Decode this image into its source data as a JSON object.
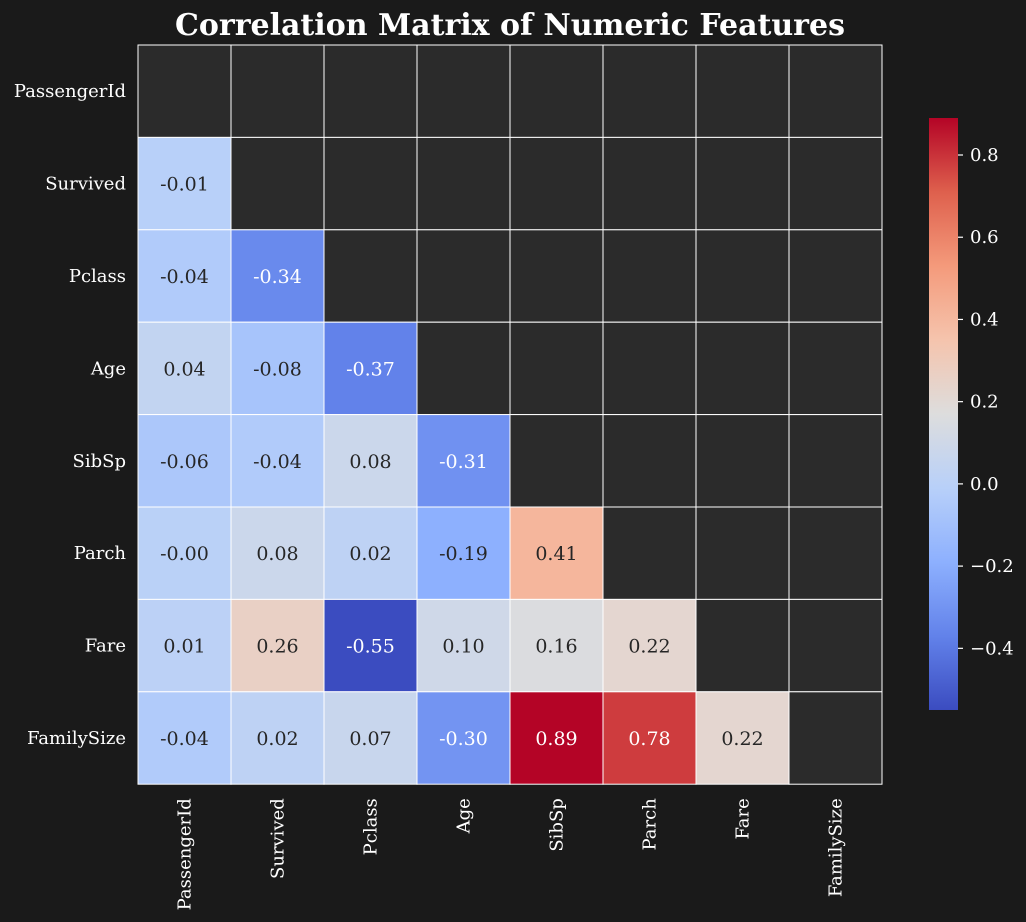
{
  "chart_data": {
    "type": "heatmap",
    "title": "Correlation Matrix of Numeric Features",
    "variables": [
      "PassengerId",
      "Survived",
      "Pclass",
      "Age",
      "SibSp",
      "Parch",
      "Fare",
      "FamilySize"
    ],
    "mask": "upper-triangle-including-diagonal",
    "cells": [
      {
        "row": 1,
        "col": 0,
        "value": -0.01,
        "label": "-0.01"
      },
      {
        "row": 2,
        "col": 0,
        "value": -0.04,
        "label": "-0.04"
      },
      {
        "row": 2,
        "col": 1,
        "value": -0.34,
        "label": "-0.34"
      },
      {
        "row": 3,
        "col": 0,
        "value": 0.04,
        "label": "0.04"
      },
      {
        "row": 3,
        "col": 1,
        "value": -0.08,
        "label": "-0.08"
      },
      {
        "row": 3,
        "col": 2,
        "value": -0.37,
        "label": "-0.37"
      },
      {
        "row": 4,
        "col": 0,
        "value": -0.06,
        "label": "-0.06"
      },
      {
        "row": 4,
        "col": 1,
        "value": -0.04,
        "label": "-0.04"
      },
      {
        "row": 4,
        "col": 2,
        "value": 0.08,
        "label": "0.08"
      },
      {
        "row": 4,
        "col": 3,
        "value": -0.31,
        "label": "-0.31"
      },
      {
        "row": 5,
        "col": 0,
        "value": -0.0,
        "label": "-0.00"
      },
      {
        "row": 5,
        "col": 1,
        "value": 0.08,
        "label": "0.08"
      },
      {
        "row": 5,
        "col": 2,
        "value": 0.02,
        "label": "0.02"
      },
      {
        "row": 5,
        "col": 3,
        "value": -0.19,
        "label": "-0.19"
      },
      {
        "row": 5,
        "col": 4,
        "value": 0.41,
        "label": "0.41"
      },
      {
        "row": 6,
        "col": 0,
        "value": 0.01,
        "label": "0.01"
      },
      {
        "row": 6,
        "col": 1,
        "value": 0.26,
        "label": "0.26"
      },
      {
        "row": 6,
        "col": 2,
        "value": -0.55,
        "label": "-0.55"
      },
      {
        "row": 6,
        "col": 3,
        "value": 0.1,
        "label": "0.10"
      },
      {
        "row": 6,
        "col": 4,
        "value": 0.16,
        "label": "0.16"
      },
      {
        "row": 6,
        "col": 5,
        "value": 0.22,
        "label": "0.22"
      },
      {
        "row": 7,
        "col": 0,
        "value": -0.04,
        "label": "-0.04"
      },
      {
        "row": 7,
        "col": 1,
        "value": 0.02,
        "label": "0.02"
      },
      {
        "row": 7,
        "col": 2,
        "value": 0.07,
        "label": "0.07"
      },
      {
        "row": 7,
        "col": 3,
        "value": -0.3,
        "label": "-0.30"
      },
      {
        "row": 7,
        "col": 4,
        "value": 0.89,
        "label": "0.89"
      },
      {
        "row": 7,
        "col": 5,
        "value": 0.78,
        "label": "0.78"
      },
      {
        "row": 7,
        "col": 6,
        "value": 0.22,
        "label": "0.22"
      }
    ],
    "colorbar": {
      "colormap": "coolwarm",
      "range": [
        -0.55,
        0.89
      ],
      "ticks": [
        -0.4,
        -0.2,
        0.0,
        0.2,
        0.4,
        0.6,
        0.8
      ],
      "tick_labels": [
        "−0.4",
        "−0.2",
        "0.0",
        "0.2",
        "0.4",
        "0.6",
        "0.8"
      ]
    },
    "colors": {
      "background": "#1a1a1a",
      "masked_cell": "#2b2b2b",
      "grid_line": "#ffffff"
    }
  }
}
